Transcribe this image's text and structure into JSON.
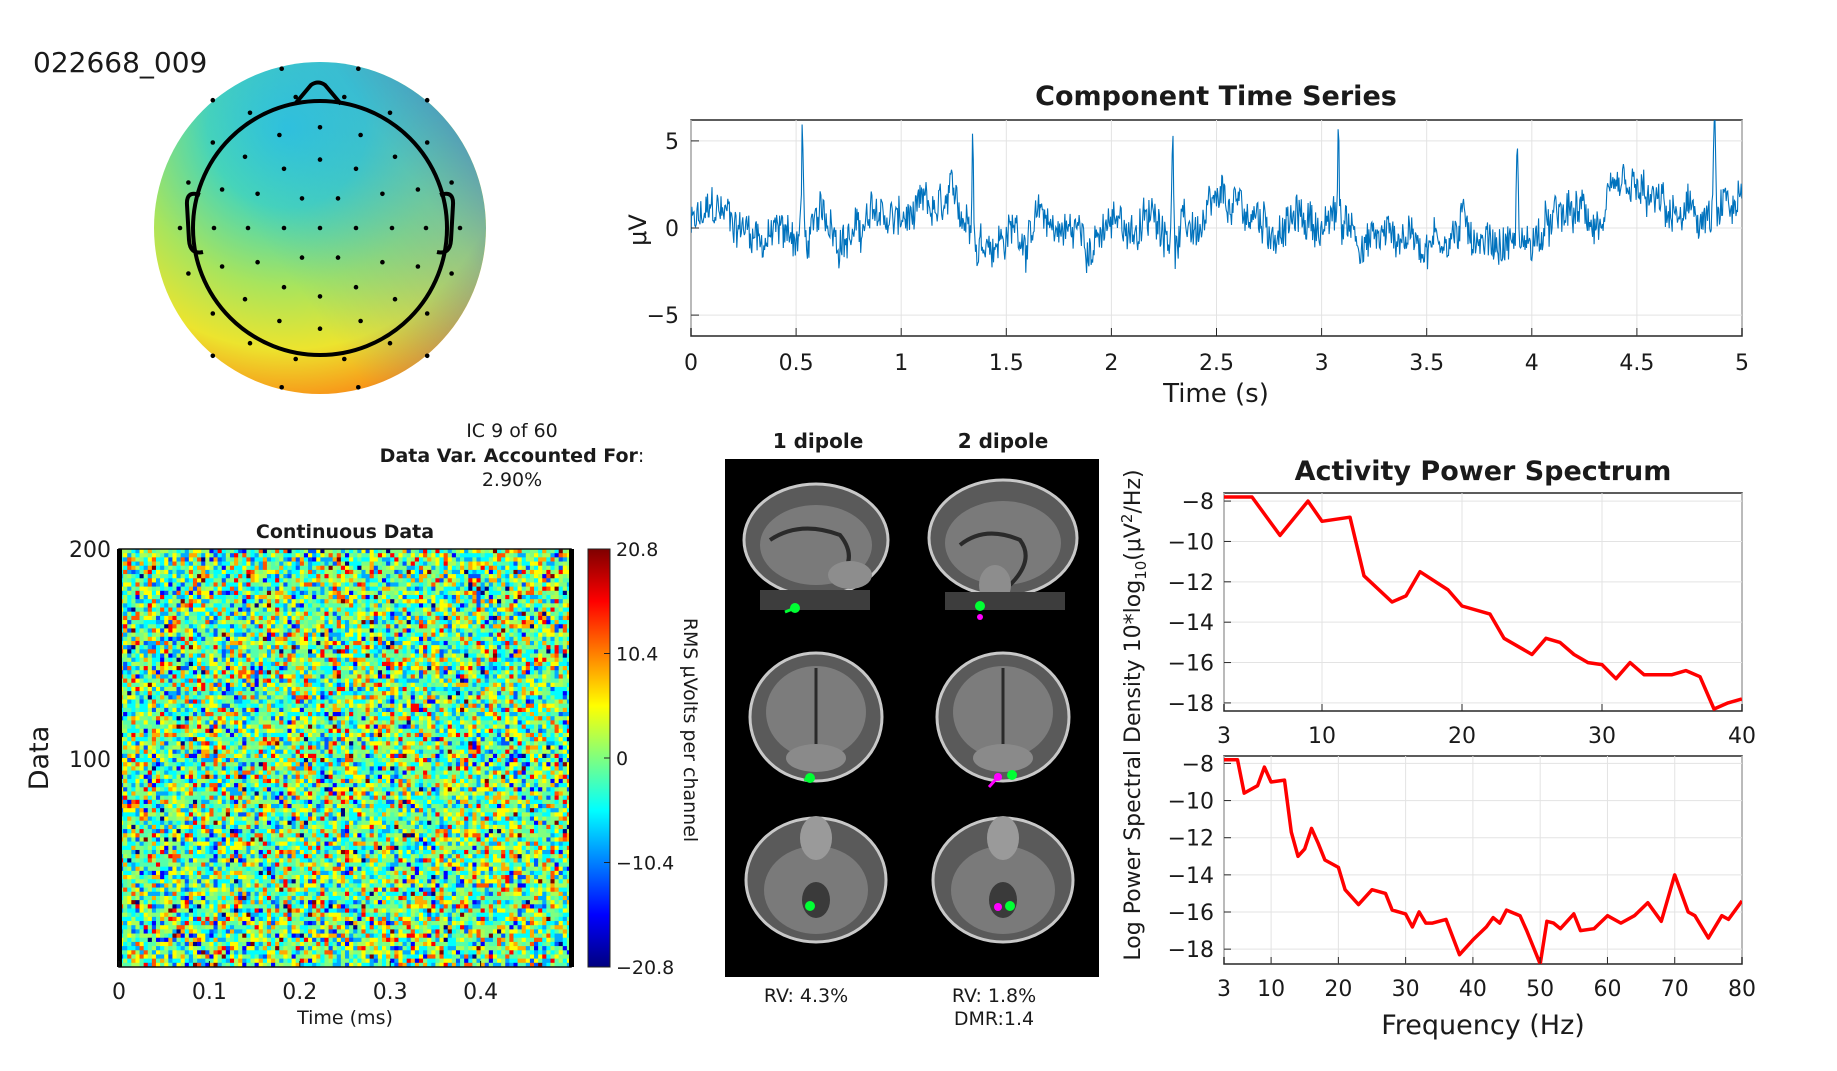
{
  "figure_id": "022668_009",
  "ic_info": {
    "line1": "IC 9 of 60",
    "line2_bold": "Data Var. Accounted For",
    "line2_rest": ":",
    "line3": "2.90%"
  },
  "dipole": {
    "col1": "1 dipole",
    "col2": "2 dipole",
    "rv1": "RV: 4.3%",
    "rv2": "RV: 1.8%",
    "dmr": "DMR:1.4"
  },
  "colors": {
    "series_blue": "#0072BD",
    "psd_red": "#FF0000",
    "dipole1": "#00FF33",
    "dipole2": "#FF00FF"
  },
  "chart_data": [
    {
      "type": "line",
      "title": "Component Time Series",
      "xlabel": "Time (s)",
      "ylabel": "μV",
      "xlim": [
        0,
        5
      ],
      "ylim": [
        -6.2,
        6.2
      ],
      "xticks": [
        "0",
        "0.5",
        "1",
        "1.5",
        "2",
        "2.5",
        "3",
        "3.5",
        "4",
        "4.5",
        "5"
      ],
      "yticks": [
        "5",
        "0",
        "−5"
      ],
      "grid": true,
      "spikes": [
        {
          "t": 0.53,
          "v": 5.9
        },
        {
          "t": 1.34,
          "v": 5.9
        },
        {
          "t": 2.29,
          "v": 6.0
        },
        {
          "t": 3.08,
          "v": 4.5
        },
        {
          "t": 3.93,
          "v": 5.7
        },
        {
          "t": 4.87,
          "v": 5.9
        }
      ],
      "noise_range": [
        -3.5,
        2.5
      ]
    },
    {
      "type": "heatmap",
      "title": "Continuous Data",
      "xlabel": "Time (ms)",
      "ylabel": "Data",
      "xlim": [
        0,
        0.5
      ],
      "ylim": [
        1,
        200
      ],
      "xticks": [
        "0",
        "0.1",
        "0.2",
        "0.3",
        "0.4"
      ],
      "yticks": [
        "200",
        "100"
      ],
      "colorbar": {
        "label": "RMS μVolts per channel",
        "ticks": [
          "20.8",
          "10.4",
          "0",
          "−10.4",
          "−20.8"
        ],
        "range": [
          -20.8,
          20.8
        ],
        "colormap": "jet"
      }
    },
    {
      "type": "line",
      "title": "Activity Power Spectrum",
      "ylabel": "Log Power Spectral Density 10*log10(μV²/Hz)",
      "xlim": [
        3,
        40
      ],
      "ylim": [
        -18.4,
        -7.6
      ],
      "xticks": [
        "3",
        "10",
        "20",
        "30",
        "40"
      ],
      "yticks": [
        "−8",
        "−10",
        "−12",
        "−14",
        "−16",
        "−18"
      ],
      "grid": true,
      "x": [
        3,
        5,
        7,
        9,
        10,
        12,
        13,
        15,
        16,
        17,
        19,
        20,
        22,
        23,
        25,
        26,
        27,
        28,
        29,
        30,
        31,
        32,
        33,
        34,
        35,
        36,
        37,
        38,
        39,
        40
      ],
      "values": [
        -7.8,
        -7.8,
        -9.7,
        -8.0,
        -9.0,
        -8.8,
        -11.7,
        -13.0,
        -12.7,
        -11.5,
        -12.4,
        -13.2,
        -13.6,
        -14.8,
        -15.6,
        -14.8,
        -15.0,
        -15.6,
        -16.0,
        -16.1,
        -16.8,
        -16.0,
        -16.6,
        -16.6,
        -16.6,
        -16.4,
        -16.7,
        -18.3,
        -18.0,
        -17.8
      ]
    },
    {
      "type": "line",
      "xlabel": "Frequency (Hz)",
      "xlim": [
        3,
        80
      ],
      "ylim": [
        -18.8,
        -7.6
      ],
      "xticks": [
        "3",
        "10",
        "20",
        "30",
        "40",
        "50",
        "60",
        "70",
        "80"
      ],
      "yticks": [
        "−8",
        "−10",
        "−12",
        "−14",
        "−16",
        "−18"
      ],
      "grid": true,
      "x": [
        3,
        5,
        6,
        8,
        9,
        10,
        12,
        13,
        14,
        15,
        16,
        17,
        18,
        20,
        21,
        23,
        25,
        27,
        28,
        30,
        31,
        32,
        33,
        34,
        36,
        38,
        39,
        40,
        42,
        43,
        44,
        45,
        47,
        48,
        50,
        51,
        52,
        53,
        55,
        56,
        58,
        60,
        62,
        64,
        66,
        68,
        70,
        72,
        73,
        75,
        77,
        78,
        80
      ],
      "values": [
        -7.8,
        -7.8,
        -9.6,
        -9.2,
        -8.2,
        -9.0,
        -8.9,
        -11.7,
        -13.0,
        -12.6,
        -11.5,
        -12.3,
        -13.2,
        -13.6,
        -14.8,
        -15.6,
        -14.8,
        -15.0,
        -15.9,
        -16.1,
        -16.8,
        -16.0,
        -16.6,
        -16.6,
        -16.4,
        -18.3,
        -17.9,
        -17.5,
        -16.8,
        -16.3,
        -16.6,
        -15.9,
        -16.2,
        -17.0,
        -18.8,
        -16.5,
        -16.6,
        -16.9,
        -16.1,
        -17.0,
        -16.9,
        -16.2,
        -16.6,
        -16.2,
        -15.5,
        -16.5,
        -14.0,
        -16.0,
        -16.2,
        -17.4,
        -16.2,
        -16.4,
        -15.4
      ]
    }
  ]
}
